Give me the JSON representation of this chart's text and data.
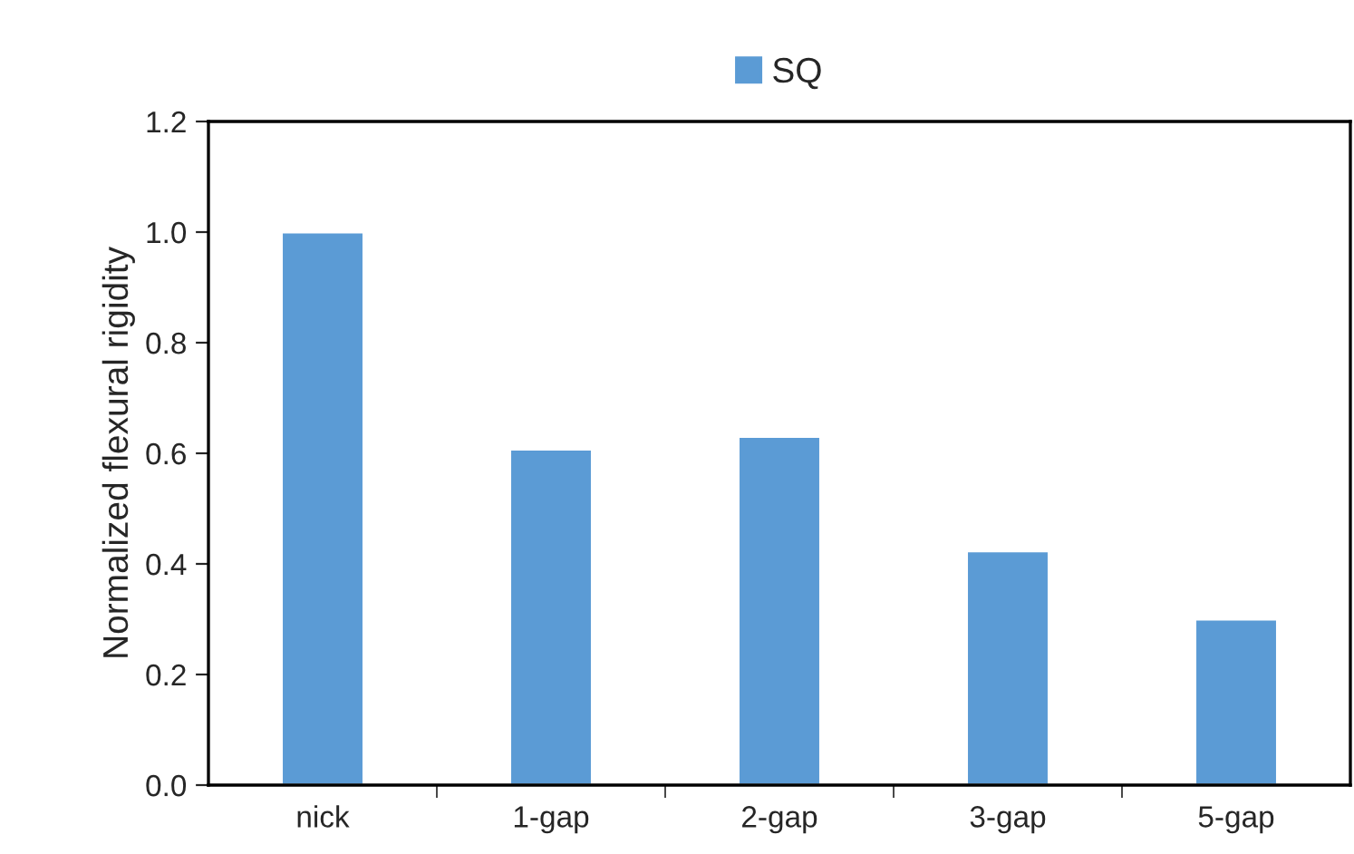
{
  "chart_data": {
    "type": "bar",
    "ylabel": "Normalized flexural rigidity",
    "categories": [
      "nick",
      "1-gap",
      "2-gap",
      "3-gap",
      "5-gap"
    ],
    "series": [
      {
        "name": "SQ",
        "color": "#5b9bd5",
        "values": [
          1.0,
          0.607,
          0.63,
          0.423,
          0.3
        ]
      }
    ],
    "ylim": [
      0,
      1.2
    ],
    "yticks": [
      {
        "value": 0,
        "label": "0.0"
      },
      {
        "value": 0.2,
        "label": "0.2"
      },
      {
        "value": 0.4,
        "label": "0.4"
      },
      {
        "value": 0.6,
        "label": "0.6"
      },
      {
        "value": 0.8,
        "label": "0.8"
      },
      {
        "value": 1.0,
        "label": "1.0"
      },
      {
        "value": 1.2,
        "label": "1.2"
      }
    ],
    "legend": "top",
    "grid": false
  }
}
